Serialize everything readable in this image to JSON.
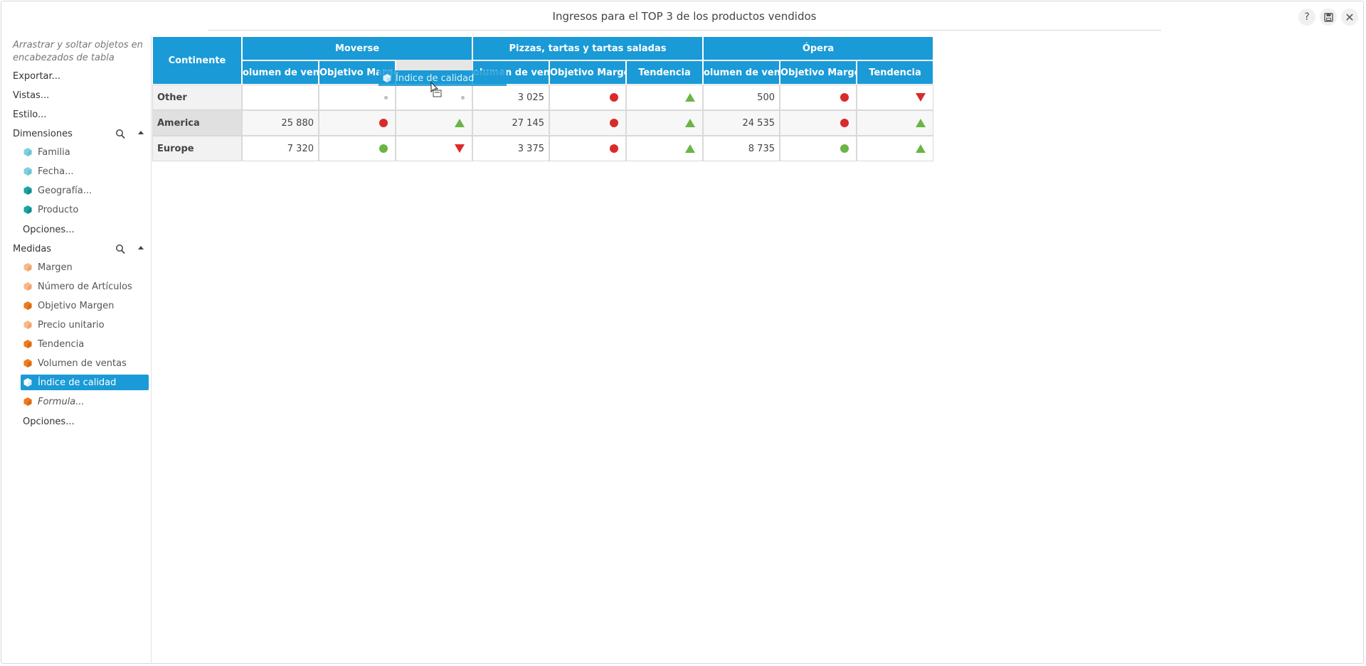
{
  "window": {
    "title": "Ingresos para el TOP 3 de los productos vendidos"
  },
  "icons": {
    "help": "question-icon",
    "save": "save-icon",
    "close": "close-icon"
  },
  "sidebar": {
    "hint": "Arrastrar y soltar objetos en encabezados de tabla",
    "links": [
      "Exportar...",
      "Vistas...",
      "Estilo..."
    ],
    "dimensions": {
      "label": "Dimensiones",
      "items": [
        "Familia",
        "Fecha...",
        "Geografía...",
        "Producto"
      ],
      "options": "Opciones..."
    },
    "measures": {
      "label": "Medidas",
      "items": [
        "Margen",
        "Número de Artículos",
        "Objetivo Margen",
        "Precio unitario",
        "Tendencia",
        "Volumen de ventas",
        "Índice de calidad",
        "Formula..."
      ],
      "selected": "Índice de calidad",
      "options": "Opciones..."
    }
  },
  "colors": {
    "accent": "#1a9ad6",
    "red": "#d92b2b",
    "green": "#6bb544",
    "dim_light": "#7fd0e0",
    "dim_dark": "#1aa5a5",
    "measure_light": "#f7b98a",
    "measure_dark": "#f07b1f"
  },
  "table": {
    "corner": "Continente",
    "groups": [
      "Moverse",
      "Pizzas, tartas y tartas saladas",
      "Ópera"
    ],
    "subheaders": [
      "olumen de venta",
      "Objetivo Margen",
      "",
      "olumen de venta",
      "Objetivo Margen",
      "Tendencia",
      "olumen de venta",
      "Objetivo Margen",
      "Tendencia"
    ],
    "rows": [
      {
        "label": "Other",
        "cells": [
          "",
          "small-dot",
          "small-dot",
          "3 025",
          "red-dot",
          "green-up",
          "500",
          "red-dot",
          "red-down"
        ]
      },
      {
        "label": "America",
        "cells": [
          "25 880",
          "red-dot",
          "green-up",
          "27 145",
          "red-dot",
          "green-up",
          "24 535",
          "red-dot",
          "green-up"
        ]
      },
      {
        "label": "Europe",
        "cells": [
          "7 320",
          "green-dot",
          "red-down",
          "3 375",
          "red-dot",
          "green-up",
          "8 735",
          "green-dot",
          "green-up"
        ]
      }
    ]
  },
  "drag": {
    "label": "Índice de calidad"
  }
}
